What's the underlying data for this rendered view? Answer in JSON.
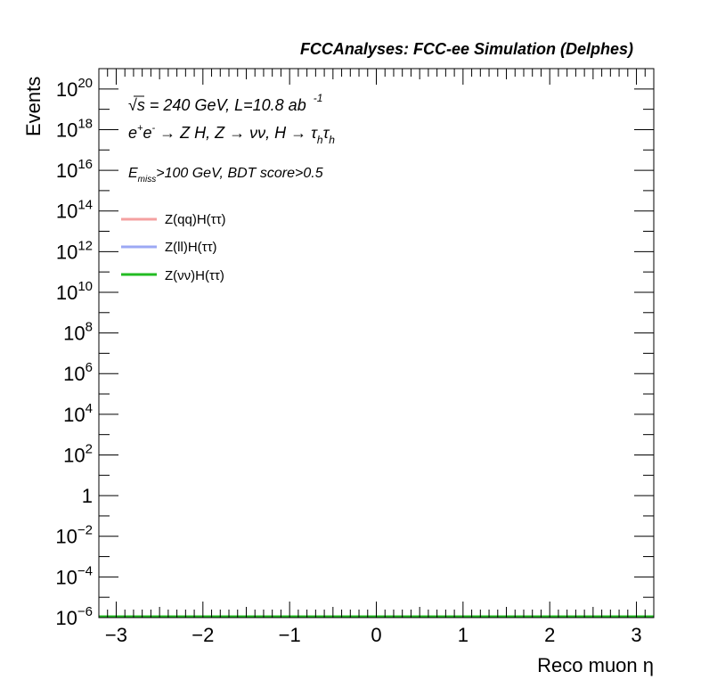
{
  "header": "FCCAnalyses: FCC-ee Simulation (Delphes)",
  "annotations": {
    "line1": {
      "sqrt": "√s",
      "rest": " = 240 GeV, L=10.8 ab",
      "sup": "-1"
    },
    "line2": {
      "e": "e",
      "plus": "+",
      "e2": "e",
      "minus": "-",
      "mid": " → Z H, Z  → νν, H → ",
      "tau1": "τ",
      "h1": "h",
      "tau2": "τ",
      "h2": "h"
    },
    "line3": {
      "E": "E",
      "miss": "miss",
      "rest": ">100 GeV, BDT score>0.5"
    }
  },
  "chart_data": {
    "type": "line",
    "xlabel": "Reco muon η",
    "ylabel": "Events",
    "xlim": [
      -3.2,
      3.2
    ],
    "ylim_log10": [
      -6,
      21
    ],
    "y_log_scale": true,
    "x_ticks": [
      {
        "value": -3,
        "label": "−3"
      },
      {
        "value": -2,
        "label": "−2"
      },
      {
        "value": -1,
        "label": "−1"
      },
      {
        "value": 0,
        "label": "0"
      },
      {
        "value": 1,
        "label": "1"
      },
      {
        "value": 2,
        "label": "2"
      },
      {
        "value": 3,
        "label": "3"
      }
    ],
    "y_ticks": [
      {
        "exp": 20,
        "base": "10",
        "sup": "20"
      },
      {
        "exp": 18,
        "base": "10",
        "sup": "18"
      },
      {
        "exp": 16,
        "base": "10",
        "sup": "16"
      },
      {
        "exp": 14,
        "base": "10",
        "sup": "14"
      },
      {
        "exp": 12,
        "base": "10",
        "sup": "12"
      },
      {
        "exp": 10,
        "base": "10",
        "sup": "10"
      },
      {
        "exp": 8,
        "base": "10",
        "sup": "8"
      },
      {
        "exp": 6,
        "base": "10",
        "sup": "6"
      },
      {
        "exp": 4,
        "base": "10",
        "sup": "4"
      },
      {
        "exp": 2,
        "base": "10",
        "sup": "2"
      },
      {
        "exp": 0,
        "base": "1",
        "sup": ""
      },
      {
        "exp": -2,
        "base": "10",
        "sup": "−2"
      },
      {
        "exp": -4,
        "base": "10",
        "sup": "−4"
      },
      {
        "exp": -6,
        "base": "10",
        "sup": "−6"
      }
    ],
    "legend_position": "top-left",
    "grid": false,
    "series": [
      {
        "name": "Z(qq)H(ττ)",
        "color": "#f4a0a0",
        "x": [
          -3.2,
          3.2
        ],
        "y": [
          1e-06,
          1e-06
        ]
      },
      {
        "name": "Z(ll)H(ττ)",
        "color": "#9ca8f4",
        "x": [
          -3.2,
          3.2
        ],
        "y": [
          1e-06,
          1e-06
        ]
      },
      {
        "name": "Z(νν)H(ττ)",
        "color": "#22bb22",
        "x": [
          -3.2,
          3.2
        ],
        "y": [
          1e-06,
          1e-06
        ]
      }
    ]
  }
}
